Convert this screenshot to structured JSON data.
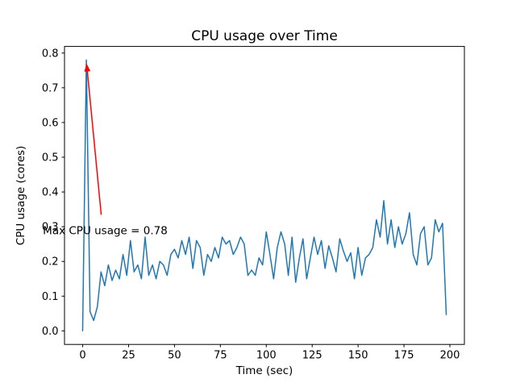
{
  "chart_data": {
    "type": "line",
    "title": "CPU usage over Time",
    "xlabel": "Time (sec)",
    "ylabel": "CPU usage (cores)",
    "grid": false,
    "legend": "none",
    "xlim": [
      -9.9,
      207.9
    ],
    "ylim": [
      -0.039,
      0.819
    ],
    "xticks": {
      "values": [
        0,
        25,
        50,
        75,
        100,
        125,
        150,
        175,
        200
      ],
      "labels": [
        "0",
        "25",
        "50",
        "75",
        "100",
        "125",
        "150",
        "175",
        "200"
      ]
    },
    "yticks": {
      "values": [
        0.0,
        0.1,
        0.2,
        0.3,
        0.4,
        0.5,
        0.6,
        0.7,
        0.8
      ],
      "labels": [
        "0.0",
        "0.1",
        "0.2",
        "0.3",
        "0.4",
        "0.5",
        "0.6",
        "0.7",
        "0.8"
      ]
    },
    "series": [
      {
        "name": "CPU usage",
        "color": "#1f77b4",
        "line_width": 1.5,
        "x": [
          0,
          2,
          4,
          6,
          8,
          10,
          12,
          14,
          16,
          18,
          20,
          22,
          24,
          26,
          28,
          30,
          32,
          34,
          36,
          38,
          40,
          42,
          44,
          46,
          48,
          50,
          52,
          54,
          56,
          58,
          60,
          62,
          64,
          66,
          68,
          70,
          72,
          74,
          76,
          78,
          80,
          82,
          84,
          86,
          88,
          90,
          92,
          94,
          96,
          98,
          100,
          102,
          104,
          106,
          108,
          110,
          112,
          114,
          116,
          118,
          120,
          122,
          124,
          126,
          128,
          130,
          132,
          134,
          136,
          138,
          140,
          142,
          144,
          146,
          148,
          150,
          152,
          154,
          156,
          158,
          160,
          162,
          164,
          166,
          168,
          170,
          172,
          174,
          176,
          178,
          180,
          182,
          184,
          186,
          188,
          190,
          192,
          194,
          196,
          198
        ],
        "y": [
          0.0,
          0.78,
          0.055,
          0.03,
          0.07,
          0.17,
          0.13,
          0.19,
          0.145,
          0.175,
          0.15,
          0.22,
          0.16,
          0.26,
          0.17,
          0.19,
          0.15,
          0.27,
          0.16,
          0.19,
          0.15,
          0.2,
          0.19,
          0.16,
          0.22,
          0.235,
          0.21,
          0.26,
          0.22,
          0.27,
          0.18,
          0.26,
          0.24,
          0.16,
          0.22,
          0.2,
          0.24,
          0.21,
          0.27,
          0.25,
          0.26,
          0.22,
          0.24,
          0.27,
          0.25,
          0.16,
          0.175,
          0.16,
          0.21,
          0.19,
          0.285,
          0.22,
          0.15,
          0.24,
          0.285,
          0.25,
          0.16,
          0.27,
          0.14,
          0.21,
          0.265,
          0.15,
          0.21,
          0.27,
          0.22,
          0.26,
          0.18,
          0.245,
          0.21,
          0.17,
          0.265,
          0.23,
          0.2,
          0.225,
          0.15,
          0.24,
          0.16,
          0.21,
          0.22,
          0.24,
          0.32,
          0.27,
          0.375,
          0.25,
          0.32,
          0.24,
          0.3,
          0.25,
          0.28,
          0.34,
          0.22,
          0.19,
          0.28,
          0.3,
          0.19,
          0.21,
          0.32,
          0.285,
          0.31,
          0.047
        ]
      }
    ],
    "annotation": {
      "text": "Max CPU usage = 0.78",
      "color": "#ff0000",
      "max_value": 0.78,
      "xy": [
        2,
        0.78
      ],
      "xytext": [
        12.3,
        0.289
      ]
    }
  }
}
